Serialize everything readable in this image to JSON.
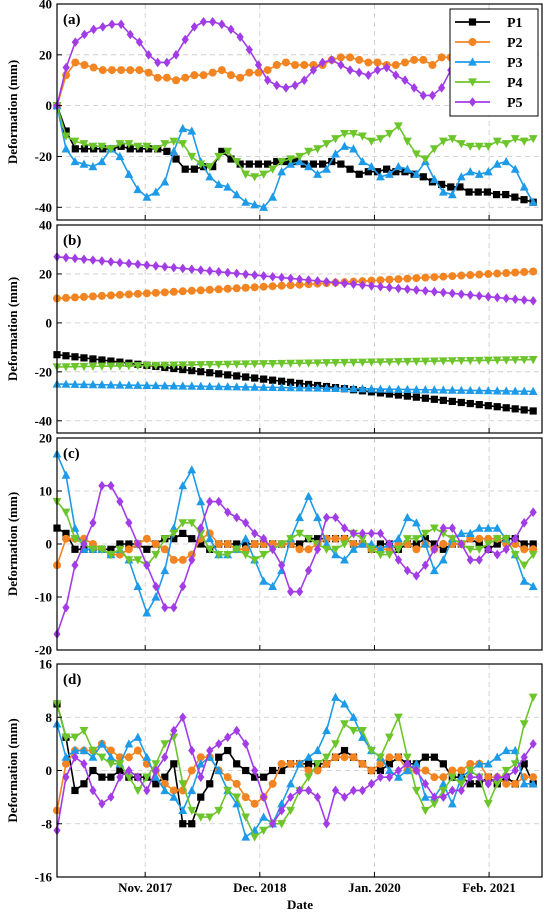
{
  "chart_data": {
    "type": "line",
    "xlabel": "Date",
    "x_tick_labels": [
      "Nov. 2017",
      "Dec. 2018",
      "Jan. 2020",
      "Feb. 2021"
    ],
    "x_tick_positions": [
      10,
      23,
      36,
      49
    ],
    "xlim": [
      0,
      55
    ],
    "ylabel": "Deformation (mm)",
    "series_styles": [
      {
        "name": "P1",
        "color": "#000000",
        "marker": "square"
      },
      {
        "name": "P2",
        "color": "#f28522",
        "marker": "circle"
      },
      {
        "name": "P3",
        "color": "#1e9be8",
        "marker": "triangle-up"
      },
      {
        "name": "P4",
        "color": "#6cc52a",
        "marker": "triangle-down"
      },
      {
        "name": "P5",
        "color": "#a23ce6",
        "marker": "diamond"
      }
    ],
    "legend_location": "top-right",
    "panels": [
      {
        "label": "(a)",
        "ylim": [
          -45,
          40
        ],
        "yticks": [
          -40,
          -20,
          0,
          20,
          40
        ],
        "legend": true,
        "series": [
          {
            "name": "P1",
            "values": [
              0,
              -10,
              -17,
              -17,
              -17,
              -17,
              -17,
              -16,
              -17,
              -17,
              -17,
              -17,
              -18,
              -21,
              -25,
              -25,
              -24,
              -24,
              -18,
              -21,
              -23,
              -23,
              -23,
              -23,
              -22,
              -22,
              -22,
              -23,
              -23,
              -23,
              -22,
              -23,
              -25,
              -27,
              -26,
              -26,
              -25,
              -26,
              -26,
              -27,
              -28,
              -30,
              -31,
              -32,
              -32,
              -34,
              -34,
              -34,
              -35,
              -35,
              -36,
              -37,
              -38
            ]
          },
          {
            "name": "P2",
            "values": [
              0,
              12,
              17,
              16,
              15,
              14,
              14,
              14,
              14,
              14,
              13,
              11,
              11,
              10,
              11,
              12,
              12,
              13,
              14,
              12,
              11,
              13,
              13,
              14,
              16,
              17,
              16,
              16,
              16,
              16,
              18,
              19,
              19,
              18,
              17,
              17,
              16,
              16,
              17,
              18,
              18,
              16,
              19,
              19,
              20,
              19,
              20,
              19,
              19,
              21,
              21,
              20,
              20
            ]
          },
          {
            "name": "P3",
            "values": [
              0,
              -17,
              -22,
              -23,
              -24,
              -22,
              -17,
              -20,
              -27,
              -33,
              -36,
              -34,
              -30,
              -18,
              -9,
              -10,
              -22,
              -28,
              -31,
              -32,
              -35,
              -38,
              -39,
              -40,
              -36,
              -26,
              -23,
              -22,
              -24,
              -27,
              -25,
              -19,
              -16,
              -17,
              -22,
              -24,
              -28,
              -27,
              -24,
              -25,
              -27,
              -22,
              -29,
              -34,
              -35,
              -28,
              -26,
              -27,
              -26,
              -23,
              -22,
              -25,
              -32,
              -38
            ]
          },
          {
            "name": "P4",
            "values": [
              0,
              -12,
              -14,
              -15,
              -16,
              -16,
              -17,
              -15,
              -15,
              -16,
              -16,
              -17,
              -15,
              -14,
              -15,
              -20,
              -23,
              -24,
              -20,
              -18,
              -22,
              -27,
              -28,
              -27,
              -25,
              -22,
              -21,
              -20,
              -18,
              -17,
              -15,
              -13,
              -11,
              -11,
              -12,
              -14,
              -13,
              -11,
              -8,
              -14,
              -19,
              -21,
              -17,
              -14,
              -13,
              -15,
              -16,
              -16,
              -16,
              -14,
              -15,
              -13,
              -14,
              -13
            ]
          },
          {
            "name": "P5",
            "values": [
              0,
              15,
              25,
              28,
              30,
              31,
              32,
              32,
              28,
              25,
              20,
              17,
              17,
              20,
              26,
              31,
              33,
              33,
              32,
              30,
              27,
              22,
              16,
              10,
              8,
              7,
              8,
              10,
              14,
              17,
              18,
              16,
              14,
              13,
              12,
              14,
              15,
              12,
              10,
              7,
              4,
              4,
              7,
              14,
              16,
              17,
              14,
              12,
              15,
              17,
              18,
              20,
              21
            ]
          }
        ]
      },
      {
        "label": "(b)",
        "ylim": [
          -45,
          40
        ],
        "yticks": [
          -40,
          -20,
          0,
          20,
          40
        ],
        "legend": false,
        "series": [
          {
            "name": "P1",
            "linear": [
              -13,
              -36
            ]
          },
          {
            "name": "P2",
            "linear": [
              10,
              21
            ]
          },
          {
            "name": "P3",
            "linear": [
              -25,
              -28
            ]
          },
          {
            "name": "P4",
            "linear": [
              -18,
              -15
            ]
          },
          {
            "name": "P5",
            "linear": [
              27,
              9
            ]
          }
        ]
      },
      {
        "label": "(c)",
        "ylim": [
          -20,
          20
        ],
        "yticks": [
          -20,
          -10,
          0,
          10,
          20
        ],
        "legend": false,
        "series": [
          {
            "name": "P1",
            "values": [
              3,
              2,
              -1,
              -1,
              -1,
              -1,
              -1,
              0,
              0,
              0,
              -1,
              0,
              1,
              1,
              2,
              1,
              0,
              -1,
              0,
              0,
              0,
              0,
              0,
              0,
              0,
              0,
              0,
              0,
              1,
              1,
              1,
              1,
              1,
              0,
              0,
              -1,
              0,
              0,
              -1,
              0,
              0,
              1,
              0,
              -1,
              0,
              0,
              1,
              0,
              -1,
              0,
              1,
              1,
              0,
              0
            ]
          },
          {
            "name": "P2",
            "values": [
              -4,
              1,
              1,
              1,
              0,
              -1,
              -2,
              -2,
              -1,
              0,
              1,
              0,
              -1,
              -3,
              -3,
              -2,
              1,
              2,
              0,
              0,
              -1,
              -1,
              0,
              0,
              0,
              0,
              0,
              -1,
              -1,
              0,
              1,
              1,
              1,
              0,
              0,
              -1,
              -1,
              -1,
              0,
              0,
              -1,
              0,
              -1,
              0,
              0,
              0,
              1,
              1,
              1,
              1,
              0,
              0,
              -1,
              -1
            ]
          },
          {
            "name": "P3",
            "values": [
              17,
              13,
              3,
              -1,
              -1,
              -1,
              -2,
              -1,
              -3,
              -8,
              -13,
              -10,
              -5,
              3,
              11,
              14,
              8,
              1,
              -2,
              -2,
              -1,
              1,
              -3,
              -7,
              -8,
              -5,
              1,
              5,
              9,
              5,
              0,
              -2,
              -3,
              -1,
              0,
              0,
              -1,
              0,
              1,
              5,
              4,
              0,
              -5,
              -3,
              1,
              2,
              2,
              3,
              3,
              3,
              1,
              -2,
              -7,
              -8
            ]
          },
          {
            "name": "P4",
            "values": [
              8,
              6,
              1,
              0,
              -1,
              -1,
              -2,
              -1,
              -3,
              -3,
              -4,
              -2,
              1,
              2,
              4,
              4,
              2,
              -1,
              -2,
              -2,
              -1,
              -2,
              -3,
              -2,
              -1,
              0,
              1,
              2,
              1,
              0,
              -1,
              -1,
              0,
              2,
              1,
              -1,
              -2,
              -2,
              -1,
              1,
              1,
              2,
              3,
              2,
              1,
              0,
              -1,
              -1,
              0,
              1,
              1,
              -2,
              -4,
              -2
            ]
          },
          {
            "name": "P5",
            "values": [
              -17,
              -12,
              -4,
              0,
              4,
              11,
              11,
              8,
              4,
              0,
              -4,
              -8,
              -12,
              -12,
              -8,
              -3,
              3,
              8,
              8,
              6,
              5,
              4,
              2,
              1,
              -1,
              -4,
              -9,
              -9,
              -5,
              -1,
              5,
              5,
              3,
              2,
              2,
              2,
              2,
              0,
              -3,
              -5,
              -6,
              -4,
              -1,
              3,
              3,
              0,
              -3,
              -3,
              -1,
              -2,
              -1,
              1,
              4,
              6
            ]
          }
        ]
      },
      {
        "label": "(d)",
        "ylim": [
          -16,
          16
        ],
        "yticks": [
          -16,
          -8,
          0,
          8,
          16
        ],
        "legend": false,
        "series": [
          {
            "name": "P1",
            "values": [
              10,
              5,
              -3,
              -2,
              0,
              -1,
              -1,
              0,
              -1,
              -1,
              -1,
              -2,
              -1,
              1,
              -8,
              -8,
              -4,
              -2,
              2,
              3,
              1,
              0,
              -1,
              -1,
              0,
              0,
              1,
              1,
              1,
              1,
              1,
              2,
              3,
              2,
              1,
              0,
              0,
              1,
              2,
              1,
              1,
              2,
              2,
              1,
              -1,
              -1,
              -2,
              -2,
              -1,
              -2,
              -1,
              -2,
              1,
              -2
            ]
          },
          {
            "name": "P2",
            "values": [
              -6,
              1,
              3,
              3,
              3,
              4,
              3,
              2,
              2,
              3,
              1,
              0,
              -2,
              -3,
              -3,
              0,
              2,
              2,
              0,
              -1,
              -2,
              -4,
              -5,
              -4,
              -2,
              1,
              1,
              1,
              0,
              0,
              1,
              2,
              2,
              2,
              1,
              0,
              1,
              2,
              2,
              0,
              0,
              0,
              -1,
              -1,
              0,
              0,
              1,
              1,
              -1,
              -1,
              -2,
              -2,
              -1,
              -1
            ]
          },
          {
            "name": "P3",
            "values": [
              7,
              2,
              3,
              3,
              2,
              4,
              2,
              1,
              4,
              5,
              2,
              -1,
              -3,
              -4,
              -6,
              -3,
              1,
              2,
              0,
              -3,
              -5,
              -10,
              -9,
              -7,
              -8,
              -5,
              -2,
              1,
              2,
              3,
              6,
              11,
              10,
              8,
              5,
              3,
              2,
              0,
              -1,
              0,
              1,
              -4,
              -4,
              -2,
              -5,
              -1,
              0,
              1,
              1,
              2,
              3,
              3,
              -2,
              -2
            ]
          },
          {
            "name": "P4",
            "values": [
              10,
              5,
              5,
              6,
              3,
              2,
              1,
              1,
              -1,
              -3,
              -1,
              1,
              4,
              5,
              -2,
              -6,
              -7,
              -7,
              -6,
              -3,
              -4,
              -7,
              -10,
              -9,
              -8,
              -8,
              -6,
              -3,
              -1,
              1,
              2,
              4,
              7,
              6,
              6,
              3,
              2,
              5,
              8,
              2,
              -3,
              -6,
              -5,
              -3,
              -1,
              -2,
              0,
              -1,
              -5,
              -2,
              0,
              1,
              7,
              11
            ]
          },
          {
            "name": "P5",
            "values": [
              -9,
              -1,
              2,
              1,
              -3,
              -5,
              -4,
              -1,
              0,
              -1,
              -3,
              0,
              2,
              6,
              8,
              3,
              -1,
              3,
              4,
              5,
              6,
              4,
              0,
              -4,
              -8,
              -6,
              -4,
              -3,
              -3,
              -4,
              -8,
              -3,
              -4,
              -3,
              -3,
              -2,
              -1,
              -1,
              0,
              1,
              0,
              -2,
              -4,
              -4,
              -3,
              -3,
              -1,
              -1,
              -2,
              -1,
              -1,
              0,
              2,
              4
            ]
          }
        ]
      }
    ]
  }
}
